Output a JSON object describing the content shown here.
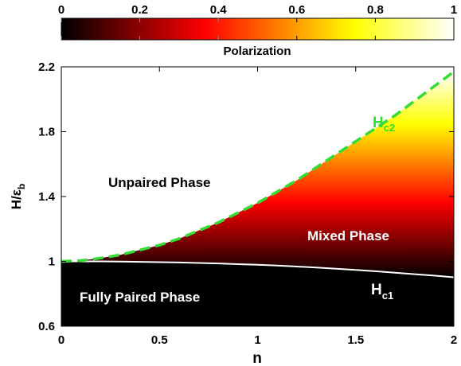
{
  "chart_data": {
    "type": "heatmap",
    "xlabel": "n",
    "ylabel_main": "H/ε",
    "ylabel_sub": "b",
    "xlim": [
      0,
      2
    ],
    "ylim": [
      0.6,
      2.2
    ],
    "xticks": [
      "0",
      "0.5",
      "1",
      "1.5",
      "2"
    ],
    "yticks": [
      "0.6",
      "1",
      "1.4",
      "1.8",
      "2.2"
    ],
    "colorbar": {
      "label": "Polarization",
      "ticks": [
        "0",
        "0.2",
        "0.4",
        "0.6",
        "0.8",
        "1"
      ],
      "range": [
        0,
        1
      ],
      "colormap": "hot"
    },
    "curves": [
      {
        "label_main": "H",
        "label_sub": "c2",
        "style": "dashed",
        "color": "#33dd33",
        "x": [
          0,
          0.1,
          0.2,
          0.3,
          0.4,
          0.5,
          0.6,
          0.7,
          0.8,
          0.9,
          1.0,
          1.1,
          1.2,
          1.3,
          1.4,
          1.5,
          1.6,
          1.7,
          1.8,
          1.9,
          2.0
        ],
        "y": [
          1.0,
          1.005,
          1.02,
          1.04,
          1.07,
          1.1,
          1.14,
          1.19,
          1.24,
          1.3,
          1.36,
          1.43,
          1.5,
          1.58,
          1.66,
          1.74,
          1.82,
          1.9,
          1.99,
          2.08,
          2.17
        ]
      },
      {
        "label_main": "H",
        "label_sub": "c1",
        "style": "solid",
        "color": "#ffffff",
        "x": [
          0,
          0.1,
          0.2,
          0.3,
          0.4,
          0.5,
          0.6,
          0.7,
          0.8,
          0.9,
          1.0,
          1.1,
          1.2,
          1.3,
          1.4,
          1.5,
          1.6,
          1.7,
          1.8,
          1.9,
          2.0
        ],
        "y": [
          1.0,
          1.0,
          1.0,
          0.999,
          0.997,
          0.995,
          0.993,
          0.99,
          0.987,
          0.983,
          0.979,
          0.974,
          0.968,
          0.962,
          0.955,
          0.947,
          0.939,
          0.93,
          0.921,
          0.912,
          0.902
        ]
      }
    ],
    "regions": [
      {
        "label": "Unpaired Phase",
        "color": "#000000"
      },
      {
        "label": "Mixed Phase",
        "color": "#ffffff"
      },
      {
        "label": "Fully Paired Phase",
        "color": "#ffffff"
      }
    ]
  }
}
